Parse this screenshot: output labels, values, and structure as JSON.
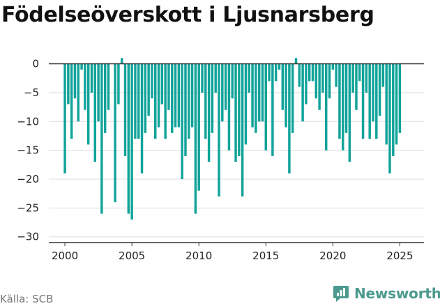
{
  "header": {
    "title": "Födelseöverskott i Ljusnarsberg"
  },
  "footer": {
    "source": "Källa: SCB",
    "brand": "Newsworthy",
    "brand_icon": "newsworthy-logo-icon"
  },
  "colors": {
    "bar": "#10a39a",
    "zero_line": "#333333",
    "grid": "#dddddd",
    "brand": "#4c9a8e"
  },
  "chart_data": {
    "type": "bar",
    "title": "Födelseöverskott i Ljusnarsberg",
    "xlabel": "",
    "ylabel": "",
    "frequency": "quarterly",
    "x_start": 2000.0,
    "x_step": 0.25,
    "xlim": [
      1998.8,
      2026.8
    ],
    "ylim": [
      -31,
      2
    ],
    "yticks": [
      0,
      -5,
      -10,
      -15,
      -20,
      -25,
      -30
    ],
    "ytick_labels": [
      "0",
      "−5",
      "−10",
      "−15",
      "−20",
      "−25",
      "−30"
    ],
    "xticks": [
      2000,
      2005,
      2010,
      2015,
      2020,
      2025
    ],
    "xtick_labels": [
      "2000",
      "2005",
      "2010",
      "2015",
      "2020",
      "2025"
    ],
    "grid": "horizontal",
    "values": [
      -19,
      -7,
      -13,
      -6,
      -10,
      -1,
      -8,
      -14,
      -5,
      -17,
      -10,
      -26,
      -12,
      -8,
      0,
      -24,
      -7,
      1,
      -16,
      -26,
      -27,
      -13,
      -13,
      -19,
      -12,
      -9,
      -6,
      -13,
      -11,
      -7,
      -13,
      -8,
      -12,
      -11,
      -11,
      -20,
      -16,
      -13,
      -11,
      -26,
      -22,
      -5,
      -13,
      -17,
      -12,
      -5,
      -23,
      -10,
      -8,
      -15,
      -6,
      -17,
      -16,
      -23,
      -14,
      -5,
      -11,
      -12,
      -10,
      -10,
      -15,
      -3,
      -16,
      -3,
      -1,
      -8,
      -11,
      -19,
      -12,
      1,
      -4,
      -10,
      -7,
      -3,
      -3,
      -6,
      -8,
      -5,
      -15,
      -6,
      -1,
      -4,
      -13,
      -15,
      -12,
      -17,
      -5,
      -8,
      -3,
      -13,
      -5,
      -13,
      -10,
      -13,
      -9,
      -4,
      -14,
      -19,
      -16,
      -14,
      -12
    ]
  }
}
